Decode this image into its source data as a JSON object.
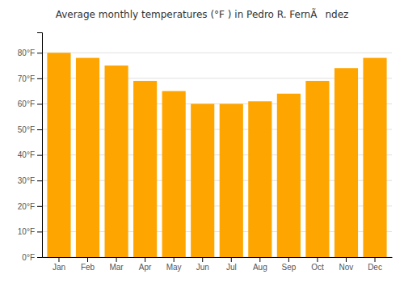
{
  "chart_data": {
    "type": "bar",
    "title": "Average monthly temperatures (°F ) in Pedro R. FernÃndez",
    "categories": [
      "Jan",
      "Feb",
      "Mar",
      "Apr",
      "May",
      "Jun",
      "Jul",
      "Aug",
      "Sep",
      "Oct",
      "Nov",
      "Dec"
    ],
    "values": [
      80,
      78,
      75,
      69,
      65,
      60,
      60,
      61,
      64,
      69,
      74,
      78
    ],
    "color": "#FFA500",
    "ylim": [
      0,
      88
    ],
    "yticks": [
      {
        "value": 0,
        "label": "0°F"
      },
      {
        "value": 10,
        "label": "10°F"
      },
      {
        "value": 20,
        "label": "20°F"
      },
      {
        "value": 30,
        "label": "30°F"
      },
      {
        "value": 40,
        "label": "40°F"
      },
      {
        "value": 50,
        "label": "50°F"
      },
      {
        "value": 60,
        "label": "60°F"
      },
      {
        "value": 70,
        "label": "70°F"
      },
      {
        "value": 80,
        "label": "80°F"
      }
    ],
    "grid": true
  }
}
